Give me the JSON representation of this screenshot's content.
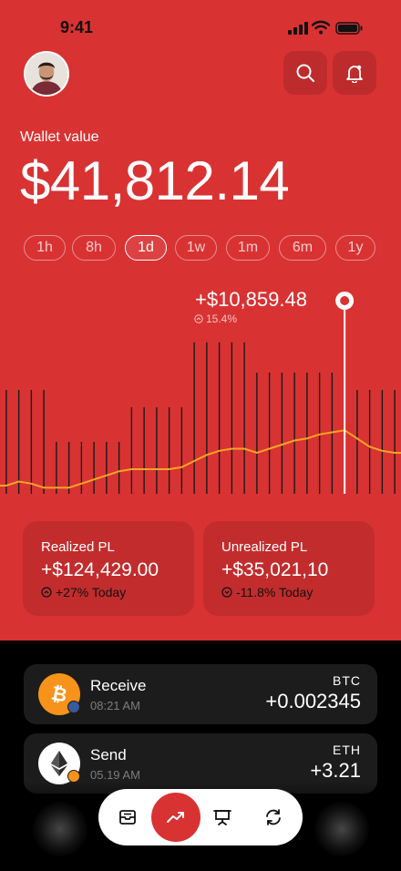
{
  "status_bar": {
    "time": "9:41"
  },
  "header": {
    "avatar": "user-avatar",
    "icons": [
      "search-icon",
      "bell-icon"
    ]
  },
  "wallet": {
    "label": "Wallet value",
    "value": "$41,812.14"
  },
  "time_ranges": {
    "options": [
      "1h",
      "8h",
      "1d",
      "1w",
      "1m",
      "6m",
      "1y"
    ],
    "selected": "1d"
  },
  "chart_tooltip": {
    "amount": "+$10,859.48",
    "percent": "15.4%"
  },
  "chart_data": {
    "type": "line",
    "title": "",
    "xlabel": "",
    "ylabel": "",
    "line_color": "#f5a623",
    "bar_color": "#1a1a1a",
    "grid": false,
    "series": [
      {
        "values": [
          4,
          6,
          5,
          3,
          3,
          3,
          5,
          7,
          9,
          11,
          12,
          12,
          12,
          12,
          13,
          16,
          19,
          21,
          22,
          22,
          20,
          22,
          24,
          26,
          27,
          29,
          30,
          31,
          27,
          23,
          21,
          20
        ]
      }
    ],
    "volume": [
      48,
      48,
      48,
      48,
      24,
      24,
      24,
      24,
      24,
      24,
      40,
      40,
      40,
      40,
      40,
      70,
      70,
      70,
      70,
      70,
      56,
      56,
      56,
      56,
      56,
      56,
      56,
      56,
      48,
      48,
      48,
      48
    ],
    "highlight_index": 27,
    "ylim": [
      0,
      80
    ]
  },
  "stats": {
    "realized": {
      "label": "Realized PL",
      "value": "+$124,429.00",
      "change": "+27% Today"
    },
    "unrealized": {
      "label": "Unrealized PL",
      "value": "+$35,021,10",
      "change": "-11.8% Today"
    }
  },
  "transactions": [
    {
      "name": "Receive",
      "time": "08:21 AM",
      "symbol": "BTC",
      "amount": "+0.002345",
      "coin_color": "#f7931a"
    },
    {
      "name": "Send",
      "time": "05.19 AM",
      "symbol": "ETH",
      "amount": "+3.21",
      "coin_color": "#ffffff"
    }
  ],
  "bottom_nav": {
    "items": [
      "inbox-icon",
      "trending-up-icon",
      "presentation-icon",
      "refresh-icon"
    ],
    "active": "trending-up-icon"
  },
  "colors": {
    "accent": "#d93233",
    "dark": "#000000",
    "card_dark": "#1c1c1c"
  }
}
